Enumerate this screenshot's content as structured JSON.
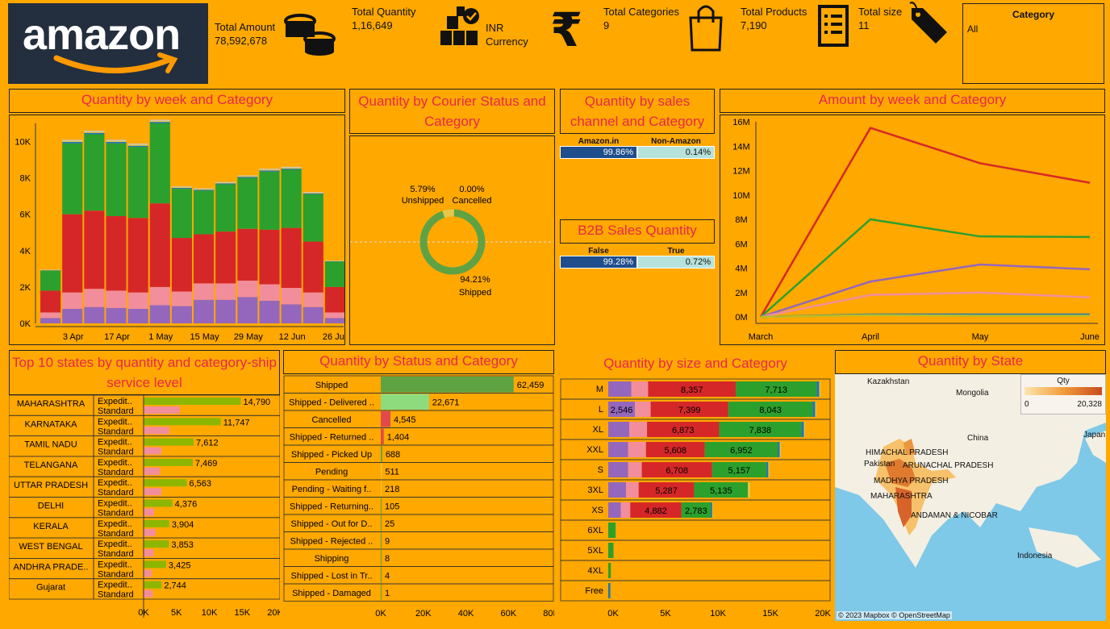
{
  "header": {
    "logo_text": "amazon",
    "kpis": {
      "total_amount": {
        "label": "Total Amount",
        "value": "78,592,678"
      },
      "total_quantity": {
        "label": "Total Quantity",
        "value": "1,16,649"
      },
      "currency": {
        "label": "INR",
        "sub": "Currency"
      },
      "total_categories": {
        "label": "Total Categories",
        "value": "9"
      },
      "total_products": {
        "label": "Total Products",
        "value": "7,190"
      },
      "total_size": {
        "label": "Total size",
        "value": "11"
      }
    },
    "filter": {
      "title": "Category",
      "value": "All"
    }
  },
  "colors": {
    "background": "#FFA800",
    "title": "#E8284A",
    "green": "#2CA02C",
    "red": "#D62728",
    "pink": "#F28E9B",
    "purple": "#9467BD",
    "blue": "#1F77B4",
    "yellow": "#E5C84A",
    "ochre": "#BCBD22",
    "olive": "#8DB600",
    "dark_blue": "#1F4E8C",
    "light_teal": "#B6E2DC",
    "light_green": "#8EDB7E"
  },
  "titles": {
    "week_qty": "Quantity by week and Category",
    "courier": "Quantity by Courier Status and Category",
    "channel": "Quantity by sales channel and Category",
    "b2b": "B2B Sales Quantity",
    "amount_week": "Amount by week and Category",
    "top_states": "Top 10 states by quantity and category-ship service level",
    "status": "Quantity by Status and Category",
    "size": "Quantity by size and Category",
    "state": "Quantity by State"
  },
  "chart_data": [
    {
      "id": "week_qty",
      "type": "bar",
      "stacked": true,
      "categories": [
        "w1",
        "w2",
        "w3",
        "w4",
        "w5",
        "w6",
        "w7",
        "w8",
        "w9",
        "w10",
        "w11",
        "w12",
        "w13",
        "w14"
      ],
      "x_tick_labels": [
        "3 Apr",
        "17 Apr",
        "1 May",
        "15 May",
        "29 May",
        "12 Jun",
        "26 Jun"
      ],
      "ylim": [
        0,
        11000
      ],
      "y_ticks": [
        "0K",
        "2K",
        "4K",
        "6K",
        "8K",
        "10K"
      ],
      "series": [
        {
          "color": "purple",
          "values": [
            300,
            800,
            900,
            850,
            800,
            1000,
            950,
            1300,
            1300,
            1450,
            1250,
            1050,
            900,
            300
          ]
        },
        {
          "color": "pink",
          "values": [
            300,
            900,
            1000,
            950,
            900,
            1000,
            800,
            900,
            900,
            900,
            900,
            900,
            800,
            300
          ]
        },
        {
          "color": "red",
          "values": [
            1200,
            4300,
            4300,
            4100,
            4100,
            4600,
            2950,
            2700,
            2850,
            2850,
            3000,
            3300,
            2800,
            1400
          ]
        },
        {
          "color": "green",
          "values": [
            1100,
            3900,
            4200,
            4000,
            3900,
            4400,
            2700,
            2400,
            2600,
            2800,
            3200,
            3200,
            2600,
            1400
          ]
        },
        {
          "color": "blue",
          "values": [
            20,
            80,
            80,
            80,
            70,
            80,
            50,
            50,
            50,
            60,
            60,
            60,
            50,
            20
          ]
        },
        {
          "color": "yellow",
          "values": [
            20,
            60,
            60,
            60,
            60,
            60,
            40,
            40,
            40,
            40,
            50,
            50,
            40,
            20
          ]
        },
        {
          "color": "gray",
          "values": [
            20,
            60,
            60,
            60,
            60,
            60,
            40,
            40,
            40,
            40,
            50,
            50,
            40,
            20
          ]
        }
      ]
    },
    {
      "id": "courier",
      "type": "pie",
      "labels": [
        "Shipped",
        "Unshipped",
        "Cancelled"
      ],
      "values": [
        94.21,
        5.79,
        0.0
      ],
      "value_labels": [
        "94.21%",
        "5.79%",
        "0.00%"
      ],
      "colors": [
        "#5FA244",
        "#E5C84A",
        "#D62728"
      ]
    },
    {
      "id": "channel",
      "type": "table",
      "columns": [
        "Amazon.in",
        "Non-Amazon"
      ],
      "values": [
        "99.86%",
        "0.14%"
      ]
    },
    {
      "id": "b2b",
      "type": "table",
      "columns": [
        "False",
        "True"
      ],
      "values": [
        "99.28%",
        "0.72%"
      ]
    },
    {
      "id": "amount_week",
      "type": "line",
      "x": [
        "March",
        "April",
        "May",
        "June"
      ],
      "ylim": [
        0,
        16000000
      ],
      "y_ticks": [
        "0M",
        "2M",
        "4M",
        "6M",
        "8M",
        "10M",
        "12M",
        "14M",
        "16M"
      ],
      "series": [
        {
          "color": "red",
          "values": [
            0,
            15500000,
            12600000,
            11000000
          ]
        },
        {
          "color": "green",
          "values": [
            0,
            8000000,
            6600000,
            6550000
          ]
        },
        {
          "color": "purple",
          "values": [
            0,
            2900000,
            4300000,
            3900000
          ]
        },
        {
          "color": "pink",
          "values": [
            0,
            1800000,
            2000000,
            1600000
          ]
        },
        {
          "color": "blue",
          "values": [
            0,
            200000,
            200000,
            200000
          ]
        },
        {
          "color": "ochre",
          "values": [
            0,
            150000,
            100000,
            100000
          ]
        }
      ]
    },
    {
      "id": "top_states",
      "type": "bar",
      "orientation": "horizontal",
      "row_labels": [
        "MAHARASHTRA",
        "KARNATAKA",
        "TAMIL NADU",
        "TELANGANA",
        "UTTAR PRADESH",
        "DELHI",
        "KERALA",
        "WEST BENGAL",
        "ANDHRA PRADE..",
        "Gujarat"
      ],
      "sub_labels": [
        "Expedit..",
        "Standard"
      ],
      "expedited": [
        14790,
        11747,
        7612,
        7469,
        6563,
        4376,
        3904,
        3853,
        3425,
        2744
      ],
      "expedited_labels": [
        "14,790",
        "11,747",
        "7,612",
        "7,469",
        "6,563",
        "4,376",
        "3,904",
        "3,853",
        "3,425",
        "2,744"
      ],
      "standard": [
        5500,
        3900,
        2700,
        2500,
        2700,
        1600,
        1800,
        1500,
        1200,
        1400
      ],
      "xlim": [
        0,
        20000
      ],
      "x_ticks": [
        "0K",
        "5K",
        "10K",
        "15K",
        "20K"
      ]
    },
    {
      "id": "status",
      "type": "bar",
      "orientation": "horizontal",
      "labels": [
        "Shipped",
        "Shipped - Delivered ..",
        "Cancelled",
        "Shipped - Returned ..",
        "Shipped - Picked Up",
        "Pending",
        "Pending - Waiting f..",
        "Shipped - Returning..",
        "Shipped - Out for D..",
        "Shipped - Rejected ..",
        "Shipping",
        "Shipped - Lost in Tr..",
        "Shipped - Damaged"
      ],
      "values": [
        62459,
        22671,
        4545,
        1404,
        688,
        511,
        218,
        105,
        25,
        9,
        8,
        4,
        1
      ],
      "value_labels": [
        "62,459",
        "22,671",
        "4,545",
        "1,404",
        "688",
        "511",
        "218",
        "105",
        "25",
        "9",
        "8",
        "4",
        "1"
      ],
      "bar_colors": [
        "#5FA244",
        "#8EDB7E",
        "#E04A4A",
        "#E04A4A",
        "#5FA244",
        "#E5C84A",
        "#E5C84A",
        "#5FA244",
        "#5FA244",
        "#5FA244",
        "#5FA244",
        "#5FA244",
        "#5FA244"
      ],
      "xlim": [
        0,
        80000
      ],
      "x_ticks": [
        "0K",
        "20K",
        "40K",
        "60K",
        "80K"
      ]
    },
    {
      "id": "size",
      "type": "bar",
      "orientation": "horizontal",
      "stacked": true,
      "labels": [
        "M",
        "L",
        "XL",
        "XXL",
        "S",
        "3XL",
        "XS",
        "6XL",
        "5XL",
        "4XL",
        "Free"
      ],
      "series": [
        {
          "color": "purple",
          "values": [
            2200,
            2546,
            2000,
            1900,
            1900,
            1700,
            1200,
            0,
            0,
            0,
            0
          ],
          "labels": [
            "",
            "2,546",
            "",
            "",
            "",
            "",
            "",
            "",
            "",
            "",
            ""
          ]
        },
        {
          "color": "pink",
          "values": [
            1600,
            1500,
            1700,
            1700,
            1300,
            1200,
            900,
            0,
            0,
            0,
            0
          ],
          "labels": [
            "",
            "",
            "",
            "",
            "",
            "",
            "",
            "",
            "",
            "",
            ""
          ]
        },
        {
          "color": "red",
          "values": [
            8357,
            7399,
            6873,
            5608,
            6708,
            5287,
            4882,
            0,
            0,
            0,
            0
          ],
          "labels": [
            "8,357",
            "7,399",
            "6,873",
            "5,608",
            "6,708",
            "5,287",
            "4,882",
            "",
            "",
            "",
            ""
          ]
        },
        {
          "color": "green",
          "values": [
            7713,
            8043,
            7838,
            6952,
            5157,
            5135,
            2783,
            700,
            500,
            250,
            0
          ],
          "labels": [
            "7,713",
            "8,043",
            "7,838",
            "6,952",
            "5,157",
            "5,135",
            "2,783",
            "",
            "",
            "",
            ""
          ]
        },
        {
          "color": "blue",
          "values": [
            250,
            250,
            250,
            200,
            200,
            0,
            150,
            0,
            0,
            0,
            200
          ],
          "labels": [
            "",
            "",
            "",
            "",
            "",
            "",
            "",
            "",
            "",
            "",
            ""
          ]
        },
        {
          "color": "yellow",
          "values": [
            100,
            100,
            100,
            100,
            100,
            200,
            50,
            0,
            0,
            0,
            0
          ],
          "labels": [
            "",
            "",
            "",
            "",
            "",
            "",
            "",
            "",
            "",
            "",
            ""
          ]
        }
      ],
      "xlim": [
        0,
        20000
      ],
      "x_ticks": [
        "0K",
        "5K",
        "10K",
        "15K",
        "20K"
      ]
    }
  ],
  "map": {
    "legend_title": "Qty",
    "legend_min": "0",
    "legend_max": "20,328",
    "labels": [
      "Kazakhstan",
      "Mongolia",
      "China",
      "Japan",
      "Pakistan",
      "HIMACHAL PRADESH",
      "ARUNACHAL PRADESH",
      "MADHYA PRADESH",
      "MAHARASHTRA",
      "ANDAMAN & NICOBAR",
      "Indonesia"
    ],
    "attribution": "© 2023 Mapbox © OpenStreetMap"
  }
}
